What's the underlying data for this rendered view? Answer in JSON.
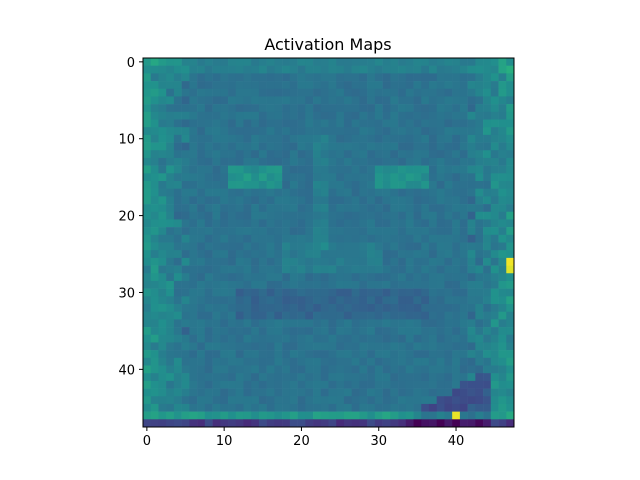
{
  "chart_data": {
    "type": "heatmap",
    "title": "Activation Maps",
    "xlabel": "",
    "ylabel": "",
    "rows": 48,
    "cols": 48,
    "x_ticks": [
      0,
      10,
      20,
      30,
      40
    ],
    "y_ticks": [
      0,
      10,
      20,
      30,
      40
    ],
    "xlim": [
      -0.5,
      47.5
    ],
    "ylim": [
      47.5,
      -0.5
    ],
    "grid": false,
    "colormap": "viridis",
    "value_range": [
      0,
      1
    ],
    "description_values": {
      "background": 0.38,
      "border_glow": 0.55,
      "dark_features": 0.25,
      "bright_spots": [
        {
          "row": 26,
          "col": 47,
          "value": 0.98
        },
        {
          "row": 27,
          "col": 47,
          "value": 0.95
        },
        {
          "row": 46,
          "col": 40,
          "value": 0.97
        }
      ]
    }
  },
  "colors": {
    "frame": "#000000",
    "background": "#ffffff"
  }
}
